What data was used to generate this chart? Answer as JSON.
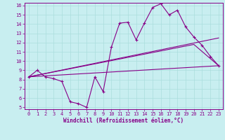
{
  "xlabel": "Windchill (Refroidissement éolien,°C)",
  "bg_color": "#c8eef0",
  "line_color": "#880088",
  "grid_color": "#aadddd",
  "xlim": [
    -0.5,
    23.5
  ],
  "ylim": [
    4.8,
    16.3
  ],
  "yticks": [
    5,
    6,
    7,
    8,
    9,
    10,
    11,
    12,
    13,
    14,
    15,
    16
  ],
  "xticks": [
    0,
    1,
    2,
    3,
    4,
    5,
    6,
    7,
    8,
    9,
    10,
    11,
    12,
    13,
    14,
    15,
    16,
    17,
    18,
    19,
    20,
    21,
    22,
    23
  ],
  "line1_x": [
    0,
    1,
    2,
    3,
    4,
    5,
    6,
    7,
    8,
    9,
    10,
    11,
    12,
    13,
    14,
    15,
    16,
    17,
    18,
    19,
    20,
    21,
    22,
    23
  ],
  "line1_y": [
    8.3,
    9.0,
    8.3,
    8.1,
    7.8,
    5.6,
    5.4,
    5.0,
    8.3,
    6.7,
    11.5,
    14.1,
    14.2,
    12.3,
    14.1,
    15.8,
    16.2,
    15.0,
    15.5,
    13.7,
    12.6,
    11.7,
    10.5,
    9.5
  ],
  "line2_x": [
    0,
    23
  ],
  "line2_y": [
    8.3,
    12.5
  ],
  "line3_x": [
    0,
    20,
    23
  ],
  "line3_y": [
    8.3,
    11.8,
    9.5
  ],
  "line4_x": [
    0,
    23
  ],
  "line4_y": [
    8.3,
    9.5
  ]
}
